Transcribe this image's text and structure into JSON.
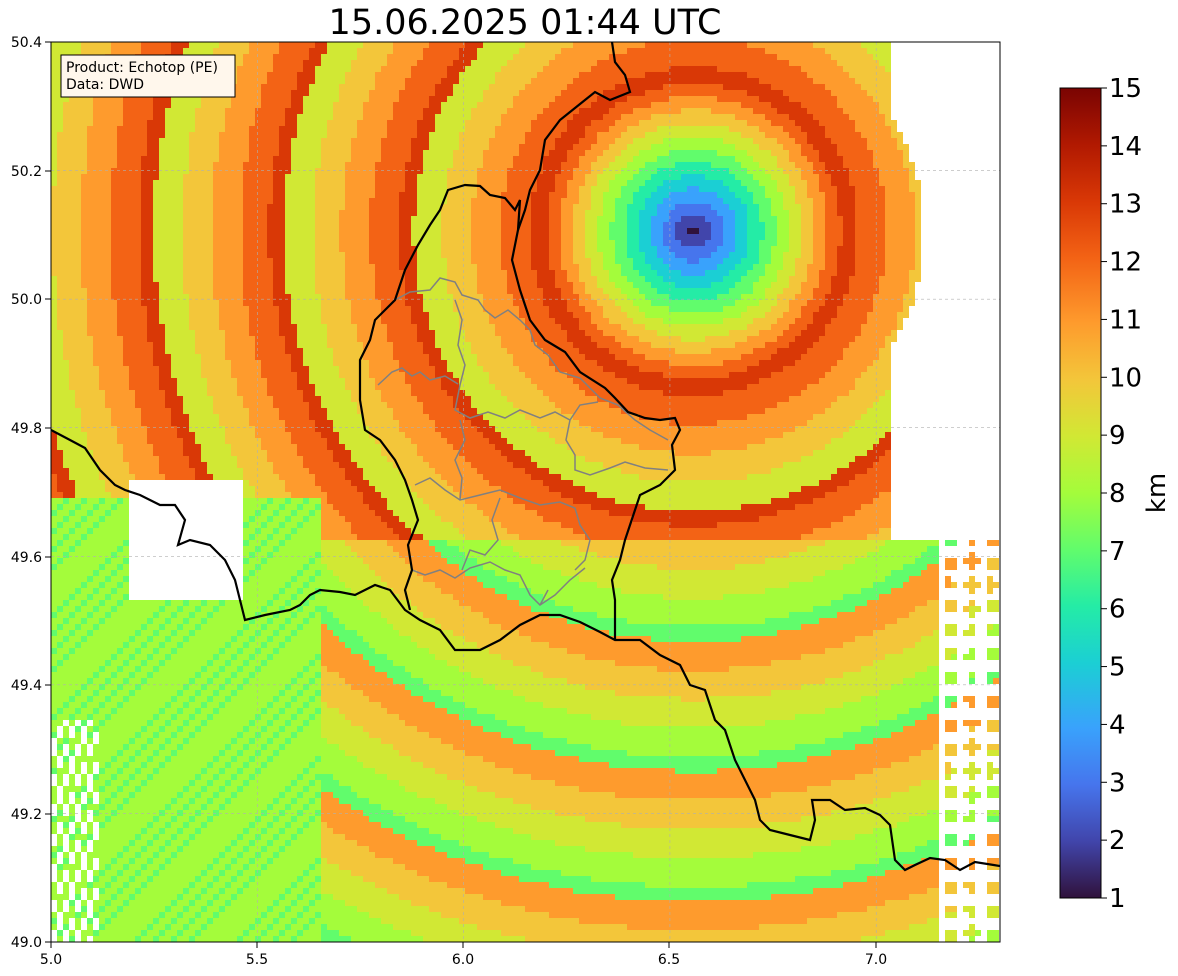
{
  "title": "15.06.2025 01:44 UTC",
  "info": {
    "product": "Product: Echotop (PE)",
    "source": "Data: DWD"
  },
  "map": {
    "lon_range": [
      5.0,
      7.3
    ],
    "lat_range": [
      49.0,
      50.4
    ],
    "x_ticks": [
      "5.0",
      "5.5",
      "6.0",
      "6.5",
      "7.0"
    ],
    "y_ticks": [
      "49.0",
      "49.2",
      "49.4",
      "49.6",
      "49.8",
      "50.0",
      "50.2",
      "50.4"
    ],
    "grid": true,
    "radar_center": {
      "lon": 6.55,
      "lat": 50.11
    }
  },
  "colorbar": {
    "label": "km",
    "min": 1,
    "max": 15,
    "ticks": [
      "1",
      "2",
      "3",
      "4",
      "5",
      "6",
      "7",
      "8",
      "9",
      "10",
      "11",
      "12",
      "13",
      "14",
      "15"
    ],
    "colors": [
      "#30123b",
      "#4145ab",
      "#4675ed",
      "#39a2fc",
      "#1bcfd4",
      "#24eca6",
      "#61fc6c",
      "#a4fc3b",
      "#d1e834",
      "#f3c63a",
      "#fe9b2d",
      "#f36315",
      "#d93806",
      "#b11901",
      "#7a0402"
    ]
  }
}
